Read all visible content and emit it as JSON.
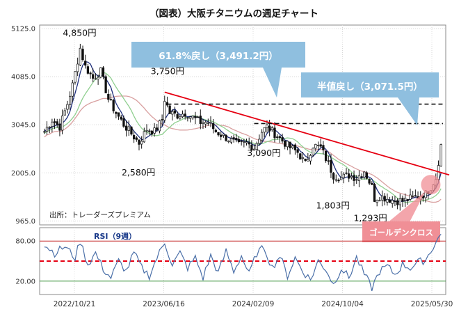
{
  "title": "（図表）大阪チタニウムの週足チャート",
  "source_note": "出所：トレーダーズプレミアム",
  "rsi_title": "RSI（9週）",
  "colors": {
    "up": "#ffffff",
    "down": "#111111",
    "wick": "#111111",
    "ma_short": "#1e2e7a",
    "ma_mid": "#8fcf8f",
    "ma_long": "#d9a0a0",
    "trendline": "#e60012",
    "callout_bg": "#8fbfdf",
    "golden_cross": "#f08f96",
    "rsi_line": "#4a6fa8",
    "rsi_upper": "#c62828",
    "rsi_lower": "#2e8b2e",
    "rsi_mid": "#e60012"
  },
  "chart_data": [
    {
      "type": "candlestick",
      "yticks": [
        "5125.0",
        "4085.0",
        "3045.0",
        "2005.0",
        "965.0"
      ],
      "ytick_values": [
        5125,
        4085,
        3045,
        2005,
        965
      ],
      "ylim": [
        880,
        5200
      ],
      "xticks": [
        "2022/10/21",
        "2023/06/16",
        "2024/02/09",
        "2024/10/04",
        "2025/05/30"
      ],
      "weeks": 156,
      "price_labels": [
        {
          "text": "4,850円",
          "value": 4850,
          "week": 14
        },
        {
          "text": "3,750円",
          "value": 3750,
          "week": 47
        },
        {
          "text": "2,580円",
          "value": 2580,
          "week": 37
        },
        {
          "text": "3,090円",
          "value": 3090,
          "week": 86
        },
        {
          "text": "1,803円",
          "value": 1803,
          "week": 113
        },
        {
          "text": "1,293円",
          "value": 1293,
          "week": 129
        }
      ],
      "callouts": [
        {
          "text": "61.8%戻し（3,491.2円）",
          "value": 3491.2
        },
        {
          "text": "半値戻し（3,071.5円）",
          "value": 3071.5
        }
      ],
      "trendline": {
        "from": {
          "week": 47,
          "value": 3750
        },
        "to": {
          "week": 156,
          "value": 1960
        }
      },
      "golden_cross_label": "ゴールデンクロス",
      "anchors": [
        [
          0,
          2900
        ],
        [
          3,
          3150
        ],
        [
          6,
          3000
        ],
        [
          9,
          3500
        ],
        [
          11,
          3900
        ],
        [
          14,
          4700
        ],
        [
          16,
          4300
        ],
        [
          19,
          4050
        ],
        [
          22,
          4200
        ],
        [
          25,
          3600
        ],
        [
          28,
          3300
        ],
        [
          31,
          3050
        ],
        [
          34,
          2850
        ],
        [
          37,
          2650
        ],
        [
          40,
          2950
        ],
        [
          43,
          2900
        ],
        [
          46,
          3150
        ],
        [
          47,
          3600
        ],
        [
          49,
          3300
        ],
        [
          52,
          3250
        ],
        [
          55,
          3300
        ],
        [
          58,
          3200
        ],
        [
          61,
          3100
        ],
        [
          64,
          3100
        ],
        [
          67,
          2900
        ],
        [
          70,
          2800
        ],
        [
          73,
          2700
        ],
        [
          76,
          2600
        ],
        [
          79,
          2650
        ],
        [
          82,
          2550
        ],
        [
          85,
          2900
        ],
        [
          87,
          3000
        ],
        [
          90,
          2850
        ],
        [
          93,
          2700
        ],
        [
          96,
          2550
        ],
        [
          99,
          2450
        ],
        [
          102,
          2200
        ],
        [
          105,
          2600
        ],
        [
          108,
          2550
        ],
        [
          111,
          2200
        ],
        [
          113,
          1950
        ],
        [
          116,
          1900
        ],
        [
          119,
          1950
        ],
        [
          122,
          1900
        ],
        [
          125,
          2050
        ],
        [
          128,
          1700
        ],
        [
          129,
          1450
        ],
        [
          131,
          1500
        ],
        [
          134,
          1450
        ],
        [
          137,
          1400
        ],
        [
          140,
          1400
        ],
        [
          143,
          1450
        ],
        [
          146,
          1500
        ],
        [
          149,
          1550
        ],
        [
          151,
          1700
        ],
        [
          153,
          1900
        ],
        [
          155,
          2600
        ]
      ]
    },
    {
      "type": "line",
      "name": "RSI（9週）",
      "yticks": [
        "80.00",
        "20.00"
      ],
      "ytick_values": [
        80,
        20
      ],
      "ylim": [
        0,
        100
      ],
      "mid_line": 50,
      "anchors": [
        [
          0,
          75
        ],
        [
          4,
          62
        ],
        [
          8,
          72
        ],
        [
          12,
          55
        ],
        [
          14,
          80
        ],
        [
          17,
          45
        ],
        [
          20,
          62
        ],
        [
          23,
          38
        ],
        [
          26,
          25
        ],
        [
          29,
          50
        ],
        [
          32,
          35
        ],
        [
          35,
          62
        ],
        [
          38,
          40
        ],
        [
          41,
          28
        ],
        [
          44,
          55
        ],
        [
          47,
          78
        ],
        [
          50,
          45
        ],
        [
          53,
          62
        ],
        [
          56,
          40
        ],
        [
          59,
          55
        ],
        [
          62,
          25
        ],
        [
          65,
          58
        ],
        [
          68,
          32
        ],
        [
          71,
          65
        ],
        [
          74,
          35
        ],
        [
          77,
          58
        ],
        [
          80,
          30
        ],
        [
          83,
          62
        ],
        [
          86,
          70
        ],
        [
          89,
          40
        ],
        [
          92,
          58
        ],
        [
          95,
          28
        ],
        [
          98,
          55
        ],
        [
          101,
          35
        ],
        [
          104,
          22
        ],
        [
          107,
          50
        ],
        [
          110,
          38
        ],
        [
          113,
          15
        ],
        [
          116,
          40
        ],
        [
          119,
          25
        ],
        [
          122,
          55
        ],
        [
          125,
          30
        ],
        [
          128,
          10
        ],
        [
          131,
          35
        ],
        [
          134,
          42
        ],
        [
          137,
          30
        ],
        [
          140,
          45
        ],
        [
          143,
          40
        ],
        [
          146,
          48
        ],
        [
          149,
          52
        ],
        [
          152,
          72
        ],
        [
          155,
          90
        ]
      ]
    }
  ]
}
